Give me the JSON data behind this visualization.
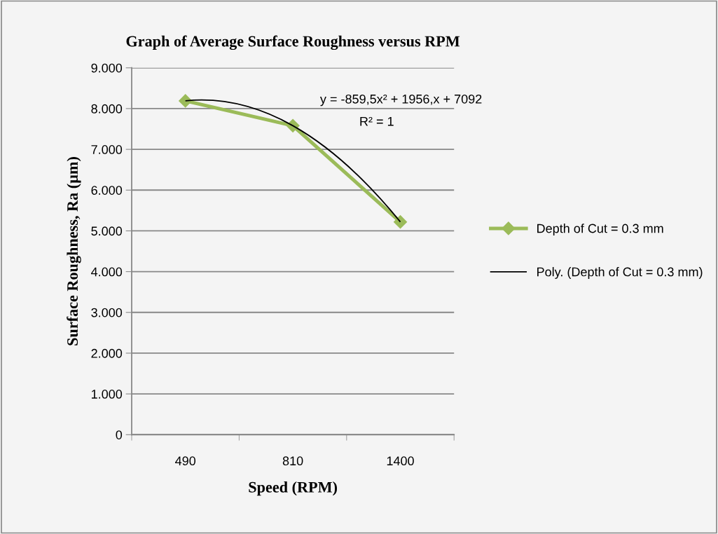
{
  "chart_data": {
    "type": "line",
    "title": "Graph of Average Surface Roughness versus RPM",
    "xlabel": "Speed (RPM)",
    "ylabel": "Surface Roughness, Ra (µm)",
    "categories": [
      "490",
      "810",
      "1400"
    ],
    "series": [
      {
        "name": "Depth of Cut = 0.3 mm",
        "color": "#9bbb59",
        "values": [
          8.19,
          7.58,
          5.22
        ],
        "marker": "diamond"
      },
      {
        "name": "Poly. (Depth of Cut = 0.3 mm)",
        "color": "#000000",
        "values": [
          8.19,
          7.58,
          5.22
        ],
        "type": "line",
        "marker": "none"
      }
    ],
    "annotations": [
      "y = -859,5x² + 1956,x + 7092",
      "R² = 1"
    ],
    "ylim": [
      0,
      9
    ],
    "yticks": [
      {
        "value": 0,
        "label": "0"
      },
      {
        "value": 1,
        "label": "1.000"
      },
      {
        "value": 2,
        "label": "2.000"
      },
      {
        "value": 3,
        "label": "3.000"
      },
      {
        "value": 4,
        "label": "4.000"
      },
      {
        "value": 5,
        "label": "5.000"
      },
      {
        "value": 6,
        "label": "6.000"
      },
      {
        "value": 7,
        "label": "7.000"
      },
      {
        "value": 8,
        "label": "8.000"
      },
      {
        "value": 9,
        "label": "9.000"
      }
    ],
    "grid": "y",
    "legend": "right"
  }
}
